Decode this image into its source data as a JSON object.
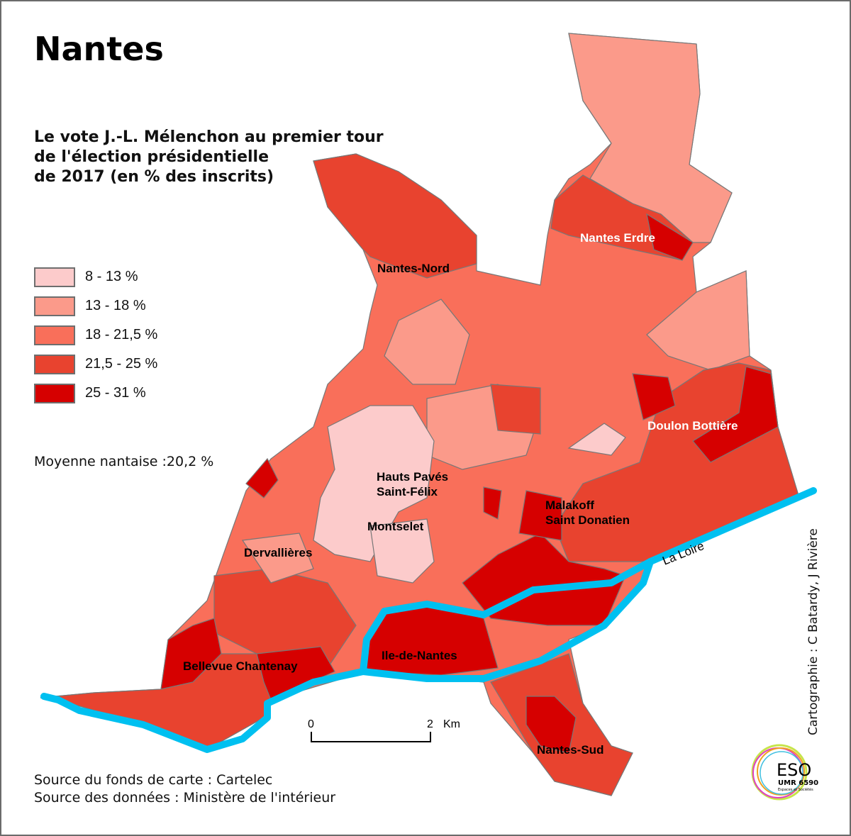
{
  "title": "Nantes",
  "subtitle": "Le vote J.-L. Mélenchon au premier tour\nde l'élection présidentielle\nde 2017 (en % des inscrits)",
  "legend": [
    {
      "label": "8 - 13 %",
      "color": "#fccbcb"
    },
    {
      "label": "13 - 18 %",
      "color": "#fb9a8a"
    },
    {
      "label": "18 - 21,5 %",
      "color": "#f96f5a"
    },
    {
      "label": "21,5 - 25 %",
      "color": "#e8432f"
    },
    {
      "label": "25 - 31 %",
      "color": "#d60000"
    }
  ],
  "mean": "Moyenne nantaise :20,2 %",
  "districts": {
    "nantes_nord": "Nantes-Nord",
    "nantes_erdre": "Nantes Erdre",
    "doulon": "Doulon Bottière",
    "hauts_paves_1": "Hauts Pavés",
    "hauts_paves_2": "Saint-Félix",
    "montselet": "Montselet",
    "malakoff_1": "Malakoff",
    "malakoff_2": "Saint Donatien",
    "dervallieres": "Dervallières",
    "ile": "Ile-de-Nantes",
    "bellevue": "Bellevue Chantenay",
    "nantes_sud": "Nantes-Sud"
  },
  "river": {
    "label": "La Loire",
    "color": "#00c0f0"
  },
  "scale": {
    "zero": "0",
    "two": "2",
    "unit": "Km"
  },
  "sources": {
    "fond": "Source du fonds de carte : Cartelec",
    "donnees": "Source des données : Ministère de l'intérieur"
  },
  "credit": "Cartographie : C Batardy, J Rivière",
  "logo": {
    "name": "ESO",
    "sub": "UMR 6590",
    "tagline": "Espaces et Sociétés"
  }
}
